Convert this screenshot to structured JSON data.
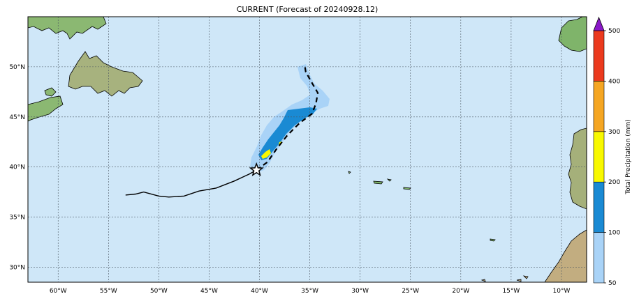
{
  "map": {
    "title": "CURRENT (Forecast of 20240928.12)",
    "lon_range": [
      -63.0,
      -7.5
    ],
    "lat_range": [
      28.5,
      55.0
    ],
    "lon_ticks": [
      {
        "value": -60,
        "label": "60°W"
      },
      {
        "value": -55,
        "label": "55°W"
      },
      {
        "value": -50,
        "label": "50°W"
      },
      {
        "value": -45,
        "label": "45°W"
      },
      {
        "value": -40,
        "label": "40°W"
      },
      {
        "value": -35,
        "label": "35°W"
      },
      {
        "value": -30,
        "label": "30°W"
      },
      {
        "value": -25,
        "label": "25°W"
      },
      {
        "value": -20,
        "label": "20°W"
      },
      {
        "value": -15,
        "label": "15°W"
      },
      {
        "value": -10,
        "label": "10°W"
      }
    ],
    "lat_ticks": [
      {
        "value": 30,
        "label": "30°N"
      },
      {
        "value": 35,
        "label": "35°N"
      },
      {
        "value": 40,
        "label": "40°N"
      },
      {
        "value": 45,
        "label": "45°N"
      },
      {
        "value": 50,
        "label": "50°N"
      }
    ],
    "colors": {
      "ocean": "#cfe7f8",
      "land_low": "#7fb46a",
      "land_high": "#c9b58a",
      "grid": "#4a5560"
    },
    "track_observed": [
      [
        -53.3,
        37.2
      ],
      [
        -52.3,
        37.3
      ],
      [
        -51.5,
        37.5
      ],
      [
        -50.0,
        37.1
      ],
      [
        -49.0,
        37.0
      ],
      [
        -47.5,
        37.1
      ],
      [
        -46.0,
        37.6
      ],
      [
        -44.3,
        37.9
      ],
      [
        -42.5,
        38.6
      ],
      [
        -41.0,
        39.3
      ],
      [
        -40.3,
        39.7
      ]
    ],
    "track_forecast": [
      [
        -40.3,
        39.7
      ],
      [
        -39.2,
        40.5
      ],
      [
        -38.3,
        41.8
      ],
      [
        -37.2,
        43.2
      ],
      [
        -36.0,
        44.4
      ],
      [
        -34.8,
        45.3
      ],
      [
        -34.4,
        46.3
      ],
      [
        -34.2,
        47.4
      ],
      [
        -34.9,
        48.6
      ],
      [
        -35.4,
        49.5
      ],
      [
        -35.5,
        50.1
      ]
    ],
    "current_position": {
      "lon": -40.3,
      "lat": 39.7,
      "icon": "star-icon"
    }
  },
  "colorbar": {
    "label": "Total Precipitation (mm)",
    "levels": [
      50,
      100,
      200,
      300,
      400,
      500
    ],
    "tick_labels": [
      "50",
      "100",
      "200",
      "300",
      "400",
      "500"
    ],
    "colors": [
      "#a9d3f7",
      "#1a8ad3",
      "#f8f800",
      "#f5a623",
      "#eb3a1e"
    ],
    "extend_color": "#8a18c8"
  }
}
